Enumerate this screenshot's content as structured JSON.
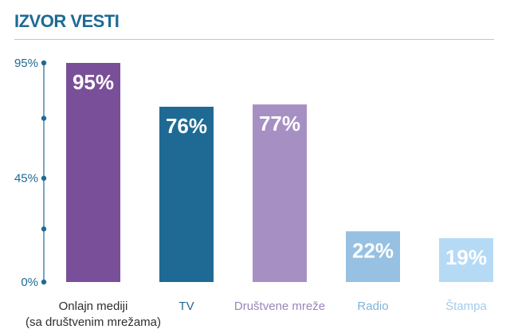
{
  "header": {
    "title": "IZVOR VESTI"
  },
  "colors": {
    "title": "#1e6a94",
    "axis": "#1e6a94",
    "online": "#7a4f99",
    "tv": "#1e6a94",
    "social": "#a690c3",
    "radio": "#97c1e2",
    "print": "#b5daf5"
  },
  "chart_data": {
    "type": "bar",
    "title": "IZVOR VESTI",
    "categories": [
      [
        "Onlajn mediji",
        "(sa društvenim mrežama)"
      ],
      [
        "TV"
      ],
      [
        "Društvene mreže"
      ],
      [
        "Radio"
      ],
      [
        "Štampa"
      ]
    ],
    "values": [
      95,
      76,
      77,
      22,
      19
    ],
    "value_labels": [
      "95%",
      "76%",
      "77%",
      "22%",
      "19%"
    ],
    "bar_colors": [
      "#7a4f99",
      "#1e6a94",
      "#a690c3",
      "#97c1e2",
      "#b5daf5"
    ],
    "label_colors": [
      "#2e2e2e",
      "#1e6a94",
      "#9a86b7",
      "#7fb3d8",
      "#a3cdea"
    ],
    "y_ticks": [
      {
        "value": 95,
        "label": "95%"
      },
      {
        "value": 45,
        "label": "45%"
      },
      {
        "value": 0,
        "label": "0%"
      }
    ],
    "y_dot_values": [
      95,
      71,
      45,
      23,
      0
    ],
    "ylim": [
      0,
      95
    ],
    "grid": false,
    "legend": "none"
  }
}
